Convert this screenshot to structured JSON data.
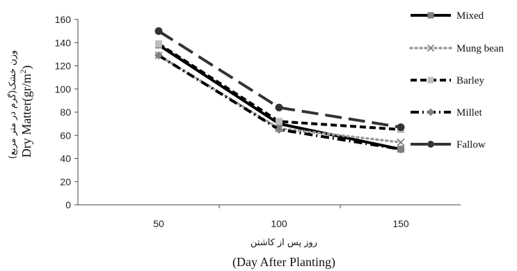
{
  "chart_data": {
    "type": "line",
    "x": [
      50,
      100,
      150
    ],
    "series": [
      {
        "name": "Mixed",
        "values": [
          138,
          70,
          48
        ],
        "color": "#000000",
        "dash": "solid",
        "marker": "square",
        "marker_color": "#808080"
      },
      {
        "name": "Mung bean",
        "values": [
          129,
          66,
          54
        ],
        "color": "#999999",
        "dash": "dot",
        "marker": "x",
        "marker_color": "#808080"
      },
      {
        "name": "Barley",
        "values": [
          139,
          72,
          65
        ],
        "color": "#000000",
        "dash": "dash",
        "marker": "square",
        "marker_color": "#bdbdbd"
      },
      {
        "name": "Millet",
        "values": [
          129,
          65,
          48
        ],
        "color": "#000000",
        "dash": "dashdot",
        "marker": "diamond",
        "marker_color": "#808080"
      },
      {
        "name": "Fallow",
        "values": [
          150,
          84,
          67
        ],
        "color": "#333333",
        "dash": "longdash",
        "marker": "circle",
        "marker_color": "#333333"
      }
    ],
    "ylim": [
      0,
      160
    ],
    "yticks": [
      0,
      20,
      40,
      60,
      80,
      100,
      120,
      140,
      160
    ],
    "xtick_labels": [
      "50",
      "100",
      "150"
    ],
    "xlabel_fa": "روز پس از کاشتن",
    "xlabel_en": "(Day After Planting)",
    "ylabel_fa": "وزن خشک(گرم در متر مربع)",
    "ylabel_en": "Dry Matter(gr/m2)",
    "grid": false,
    "legend_position": "right"
  }
}
